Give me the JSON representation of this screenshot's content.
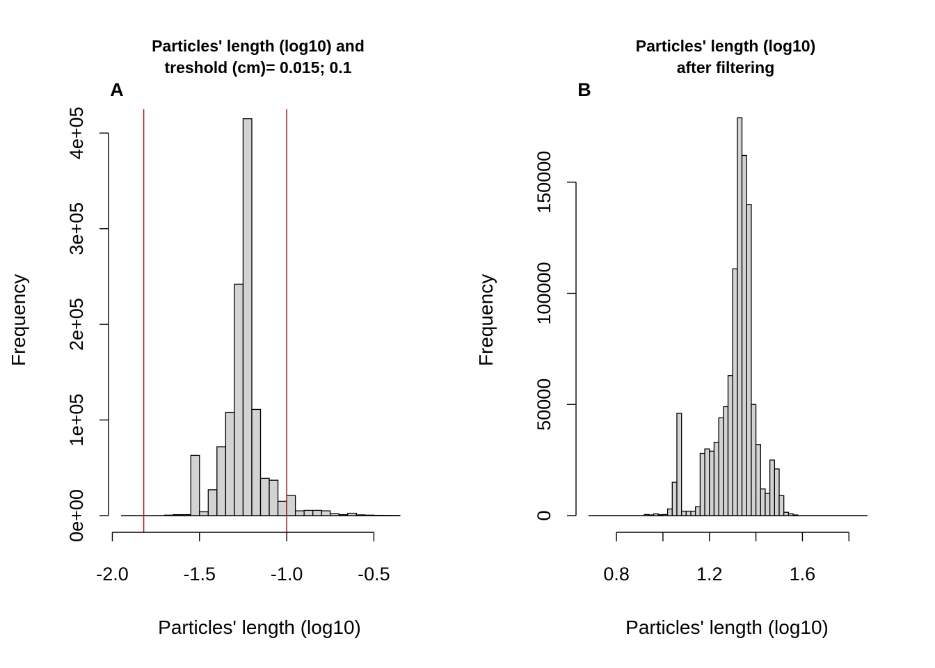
{
  "chart_data": [
    {
      "type": "bar",
      "panel": "A",
      "title_lines": [
        "Particles' length (log10) and",
        "treshold (cm)= 0.015; 0.1"
      ],
      "xlabel": "Particles' length (log10)",
      "ylabel": "Frequency",
      "xlim": [
        -1.95,
        -0.35
      ],
      "ylim": [
        0,
        430000
      ],
      "x_ticks": [
        -2.0,
        -1.5,
        -1.0,
        -0.5
      ],
      "x_tick_labels": [
        "-2.0",
        "-1.5",
        "-1.0",
        "-0.5"
      ],
      "y_ticks": [
        0,
        100000,
        200000,
        300000,
        400000
      ],
      "y_tick_labels": [
        "0e+00",
        "1e+05",
        "2e+05",
        "3e+05",
        "4e+05"
      ],
      "bin_width": 0.05,
      "bin_starts": [
        -1.95,
        -1.9,
        -1.85,
        -1.8,
        -1.75,
        -1.7,
        -1.65,
        -1.6,
        -1.55,
        -1.5,
        -1.45,
        -1.4,
        -1.35,
        -1.3,
        -1.25,
        -1.2,
        -1.15,
        -1.1,
        -1.05,
        -1.0,
        -0.95,
        -0.9,
        -0.85,
        -0.8,
        -0.75,
        -0.7,
        -0.65,
        -0.6,
        -0.55,
        -0.5,
        -0.45,
        -0.4
      ],
      "values": [
        0,
        0,
        0,
        0,
        0,
        500,
        1000,
        1000,
        63000,
        4000,
        27000,
        72000,
        108000,
        242000,
        415000,
        111000,
        39000,
        37000,
        15000,
        21000,
        5000,
        5500,
        5500,
        5000,
        2000,
        1000,
        2500,
        800,
        500,
        300,
        200,
        100
      ],
      "threshold_lines": [
        -1.82,
        -1.0
      ],
      "threshold_color": "#a52a2a",
      "bar_color": "#d3d3d3"
    },
    {
      "type": "bar",
      "panel": "B",
      "title_lines": [
        "Particles' length (log10)",
        "after filtering"
      ],
      "xlabel": "Particles' length (log10)",
      "ylabel": "Frequency",
      "xlim": [
        0.68,
        1.88
      ],
      "ylim": [
        0,
        185000
      ],
      "x_ticks": [
        0.8,
        1.0,
        1.2,
        1.4,
        1.6,
        1.8
      ],
      "x_tick_labels": [
        "0.8",
        "",
        "1.2",
        "",
        "1.6",
        ""
      ],
      "y_ticks": [
        0,
        50000,
        100000,
        150000
      ],
      "y_tick_labels": [
        "0",
        "50000",
        "100000",
        "150000"
      ],
      "bin_width": 0.02,
      "bin_starts": [
        0.92,
        0.94,
        0.96,
        0.98,
        1.0,
        1.02,
        1.04,
        1.06,
        1.08,
        1.1,
        1.12,
        1.14,
        1.16,
        1.18,
        1.2,
        1.22,
        1.24,
        1.26,
        1.28,
        1.3,
        1.32,
        1.34,
        1.36,
        1.38,
        1.4,
        1.42,
        1.44,
        1.46,
        1.48,
        1.5,
        1.52,
        1.54,
        1.56,
        1.58,
        1.6
      ],
      "values": [
        500,
        300,
        800,
        400,
        500,
        3000,
        15000,
        46000,
        2000,
        2000,
        2000,
        4000,
        28000,
        30000,
        29000,
        33000,
        44000,
        49000,
        63000,
        111000,
        179000,
        162000,
        140000,
        50000,
        32000,
        12000,
        10000,
        25000,
        21000,
        9000,
        1500,
        800,
        300,
        0,
        0
      ],
      "bar_color": "#d3d3d3"
    }
  ]
}
